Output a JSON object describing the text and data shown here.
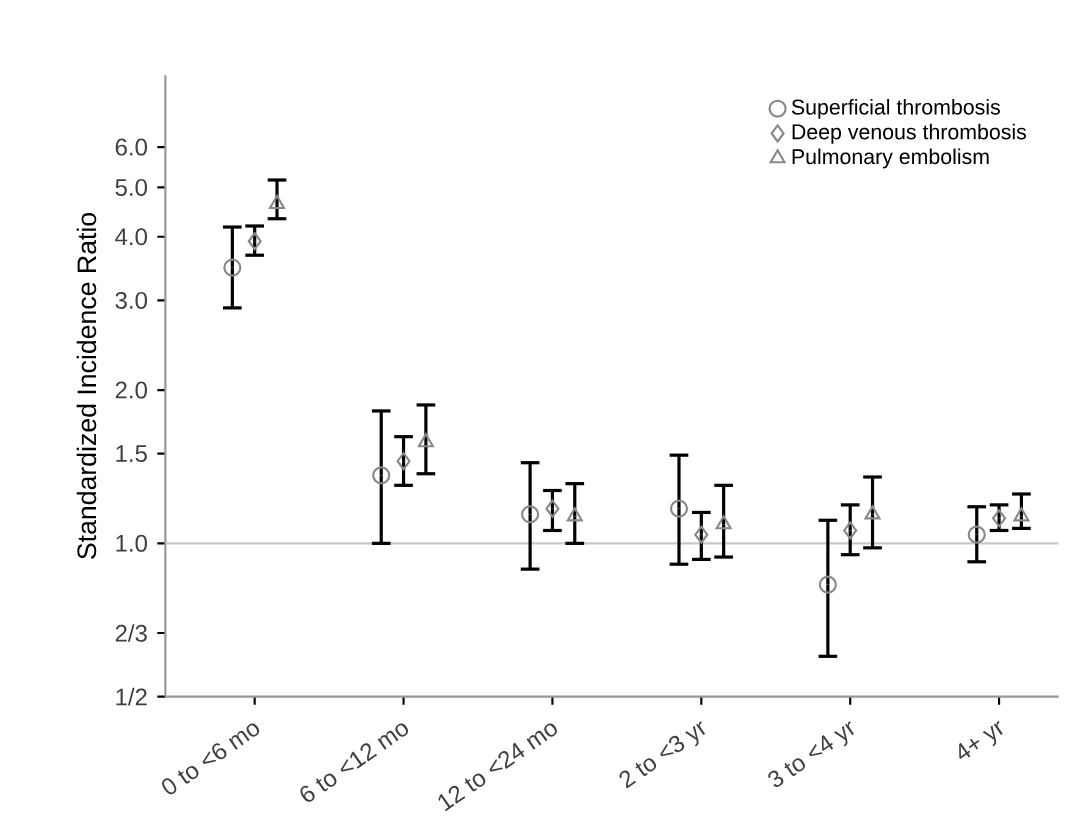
{
  "chart_data": {
    "type": "scatter",
    "ylabel": "Standardized Incidence Ratio",
    "log": "y",
    "legend": "top right",
    "grid": false,
    "categories": [
      "0 to <6 mo",
      "6 to <12 mo",
      "12 to <24 mo",
      "2 to <3 yr",
      "3 to <4 yr",
      "4+ yr"
    ],
    "ylim": [
      0.5,
      8.3
    ],
    "yticks": [
      {
        "value": 0.5,
        "label": "1/2"
      },
      {
        "value": 0.6667,
        "label": "2/3"
      },
      {
        "value": 1.0,
        "label": "1.0"
      },
      {
        "value": 1.5,
        "label": "1.5"
      },
      {
        "value": 2.0,
        "label": "2.0"
      },
      {
        "value": 3.0,
        "label": "3.0"
      },
      {
        "value": 4.0,
        "label": "4.0"
      },
      {
        "value": 5.0,
        "label": "5.0"
      },
      {
        "value": 6.0,
        "label": "6.0"
      }
    ],
    "ref_lines": [
      {
        "axis": "y",
        "value": 1.0,
        "color": "#c8c8c8"
      }
    ],
    "series": [
      {
        "name": "Superficial thrombosis",
        "color": "#888888",
        "marker": "circle",
        "values": [
          3.48,
          1.36,
          1.14,
          1.17,
          0.83,
          1.04
        ],
        "errors": [
          [
            2.9,
            4.18
          ],
          [
            1.0,
            1.82
          ],
          [
            0.89,
            1.44
          ],
          [
            0.91,
            1.49
          ],
          [
            0.6,
            1.11
          ],
          [
            0.92,
            1.18
          ]
        ]
      },
      {
        "name": "Deep venous thrombosis",
        "color": "#888888",
        "marker": "diamond",
        "values": [
          3.92,
          1.45,
          1.17,
          1.04,
          1.06,
          1.12
        ],
        "errors": [
          [
            3.68,
            4.2
          ],
          [
            1.3,
            1.62
          ],
          [
            1.06,
            1.27
          ],
          [
            0.93,
            1.15
          ],
          [
            0.95,
            1.19
          ],
          [
            1.06,
            1.19
          ]
        ]
      },
      {
        "name": "Pulmonary embolism",
        "color": "#888888",
        "marker": "triangle",
        "values": [
          4.64,
          1.58,
          1.13,
          1.09,
          1.14,
          1.13
        ],
        "errors": [
          [
            4.34,
            5.17
          ],
          [
            1.37,
            1.87
          ],
          [
            1.0,
            1.31
          ],
          [
            0.94,
            1.3
          ],
          [
            0.98,
            1.35
          ],
          [
            1.07,
            1.25
          ]
        ]
      }
    ]
  }
}
